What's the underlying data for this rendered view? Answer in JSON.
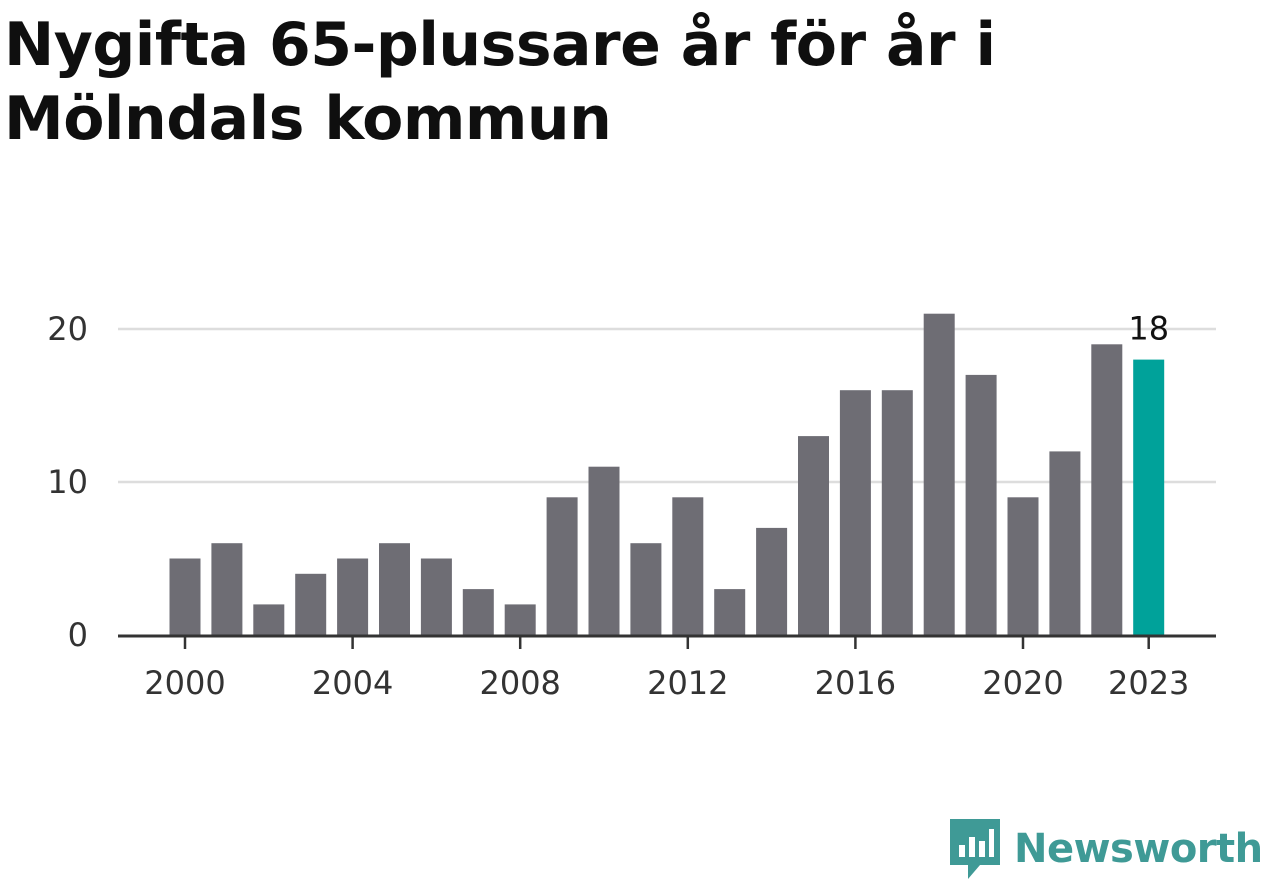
{
  "title": "Nygifta 65-plussare år för år i Mölndals kommun",
  "brand": {
    "name": "Newsworthy",
    "icon": "newsworthy-logo-icon",
    "color": "#3f9a96"
  },
  "chart_data": {
    "type": "bar",
    "title": "Nygifta 65-plussare år för år i Mölndals kommun",
    "categories": [
      2000,
      2001,
      2002,
      2003,
      2004,
      2005,
      2006,
      2007,
      2008,
      2009,
      2010,
      2011,
      2012,
      2013,
      2014,
      2015,
      2016,
      2017,
      2018,
      2019,
      2020,
      2021,
      2022,
      2023
    ],
    "values": [
      5,
      6,
      2,
      4,
      5,
      6,
      5,
      3,
      2,
      9,
      11,
      6,
      9,
      3,
      7,
      13,
      16,
      16,
      21,
      17,
      9,
      12,
      19,
      18
    ],
    "x_tick_labels": [
      "2000",
      "2004",
      "2008",
      "2012",
      "2016",
      "2020",
      "2023"
    ],
    "y_ticks": [
      0,
      10,
      20
    ],
    "ylim": [
      0,
      22
    ],
    "grid": true,
    "bar_color": "#6e6d74",
    "highlight_color": "#00a29a",
    "highlight_category": 2023,
    "annotation": {
      "category": 2023,
      "text": "18"
    }
  }
}
